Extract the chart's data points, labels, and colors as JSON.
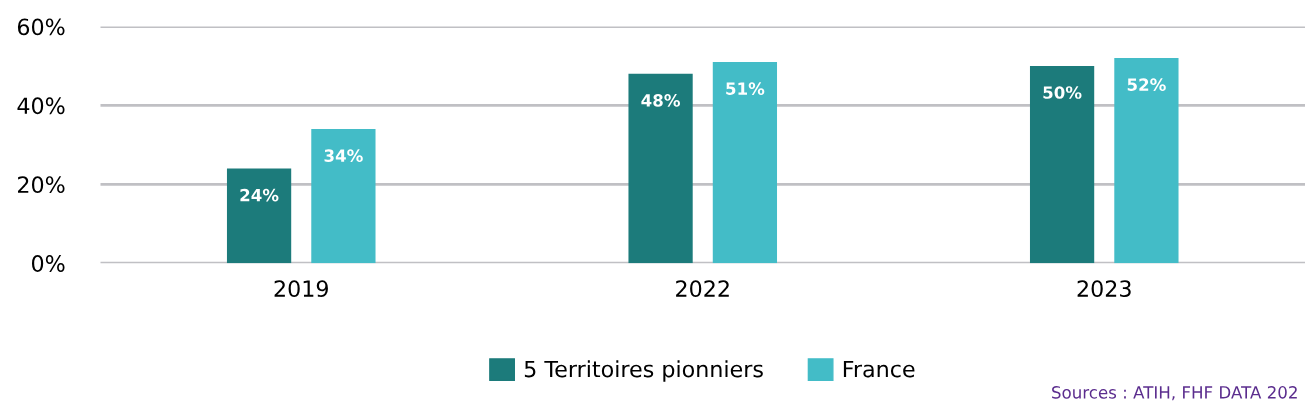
{
  "chart_data": {
    "type": "bar",
    "categories": [
      "2019",
      "2022",
      "2023"
    ],
    "series": [
      {
        "name": "5 Territoires pionniers",
        "color": "#1c7b7b",
        "values": [
          24,
          48,
          50
        ],
        "value_labels": [
          "24%",
          "48%",
          "50%"
        ]
      },
      {
        "name": "France",
        "color": "#43bcc7",
        "values": [
          34,
          51,
          52
        ],
        "value_labels": [
          "34%",
          "51%",
          "52%"
        ]
      }
    ],
    "ylim": [
      0,
      60
    ],
    "yticks": [
      {
        "value": 0,
        "label": "0%"
      },
      {
        "value": 20,
        "label": "20%"
      },
      {
        "value": 40,
        "label": "40%"
      },
      {
        "value": 60,
        "label": "60%"
      }
    ],
    "grid": "y",
    "legend": "bottom",
    "annotations": [
      "Sources : ATIH, FHF DATA 202"
    ]
  }
}
